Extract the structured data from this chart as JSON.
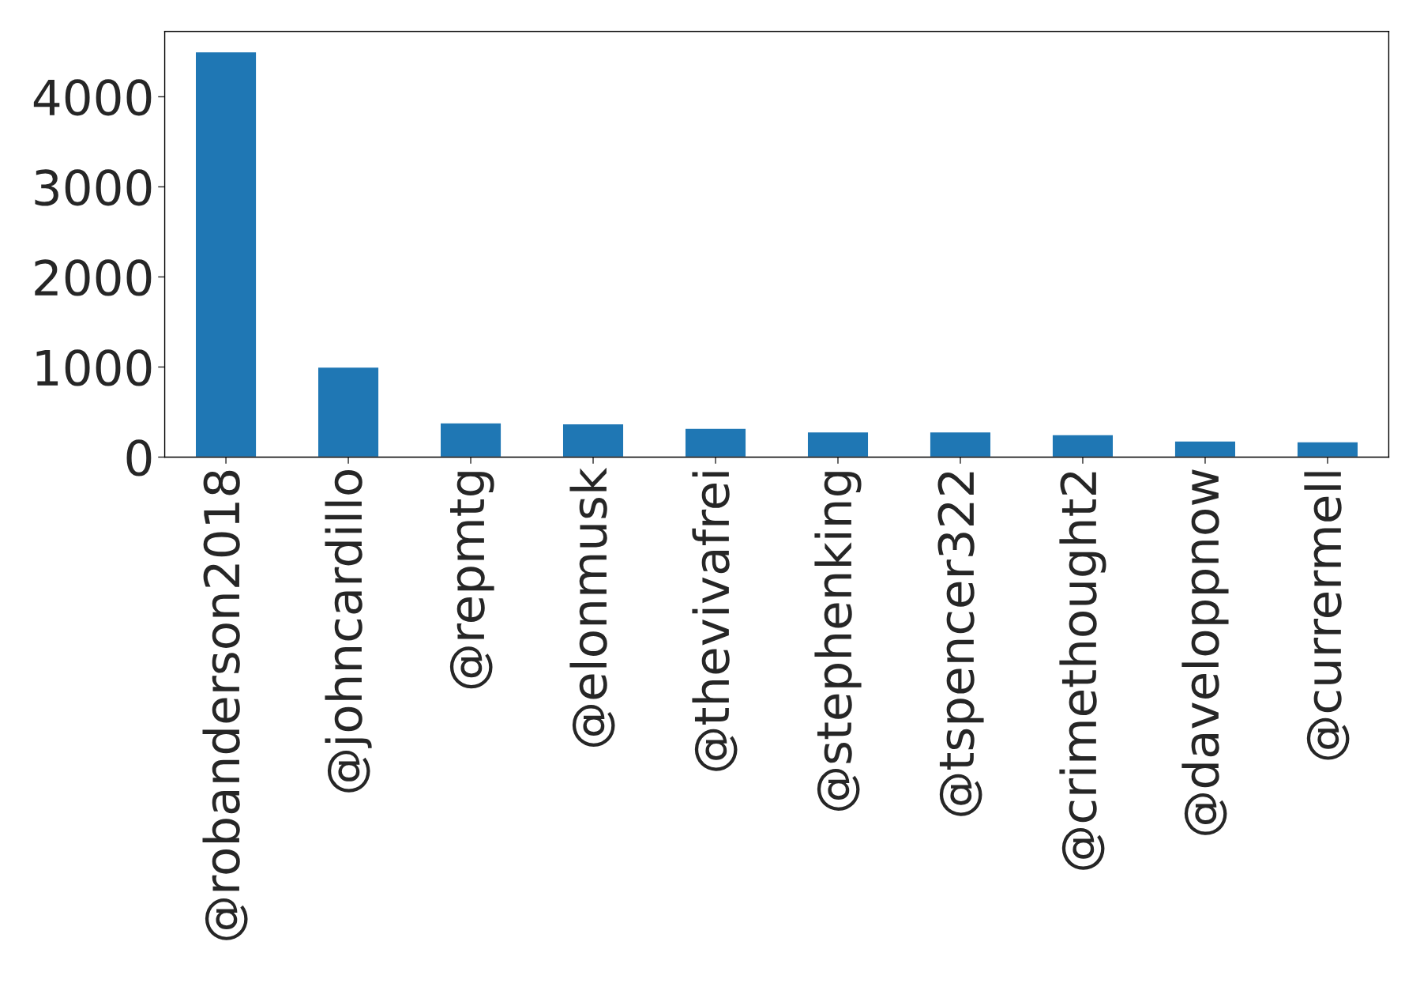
{
  "chart_data": {
    "type": "bar",
    "categories": [
      "@robanderson2018",
      "@johncardillo",
      "@repmtg",
      "@elonmusk",
      "@thevivafrei",
      "@stephenking",
      "@tspencer322",
      "@crimethought2",
      "@daveloppnow",
      "@currermell"
    ],
    "values": [
      4500,
      1000,
      380,
      370,
      320,
      280,
      280,
      250,
      180,
      170
    ],
    "color": "#1f77b4",
    "ylim": [
      0,
      4725
    ],
    "yticks": [
      0,
      1000,
      2000,
      3000,
      4000
    ],
    "grid": false,
    "legend": false
  }
}
